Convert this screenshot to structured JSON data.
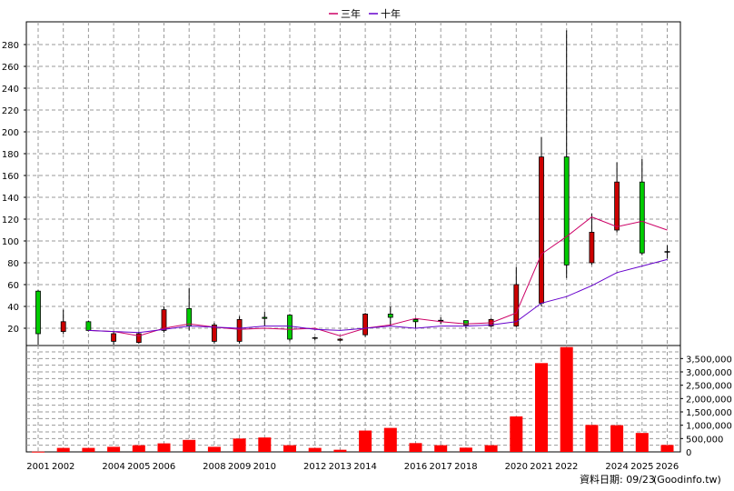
{
  "chart_data": {
    "type": "candlestick+line+bar",
    "legend": [
      {
        "name": "三年",
        "color": "#cc0066"
      },
      {
        "name": "十年",
        "color": "#6600cc"
      }
    ],
    "x_labels": [
      "2001",
      "2002",
      "2004",
      "2005",
      "2006",
      "2008",
      "2009",
      "2010",
      "2012",
      "2013",
      "2014",
      "2016",
      "2017",
      "2018",
      "2020",
      "2021",
      "2022",
      "2024",
      "2025",
      "2026"
    ],
    "price_axis": {
      "ticks": [
        20,
        40,
        60,
        80,
        100,
        120,
        140,
        160,
        180,
        200,
        220,
        240,
        260,
        280
      ],
      "range": [
        0,
        300
      ],
      "grid": true
    },
    "volume_axis": {
      "ticks": [
        500000,
        1000000,
        1500000,
        2000000,
        2500000,
        3000000,
        3500000
      ],
      "tick_labels": [
        "500,000",
        "1,000,000",
        "1,500,000",
        "2,000,000",
        "2,500,000",
        "3,000,000",
        "3,500,000"
      ],
      "range": [
        0,
        3900000
      ],
      "grid": true
    },
    "candles": [
      {
        "year": 2001,
        "open": 15,
        "close": 54,
        "high": 55,
        "low": 5
      },
      {
        "year": 2002,
        "open": 26,
        "close": 17,
        "high": 37,
        "low": 15
      },
      {
        "year": 2003,
        "open": 18,
        "close": 26,
        "high": 27,
        "low": 17
      },
      {
        "year": 2004,
        "open": 15,
        "close": 8,
        "high": 17,
        "low": 5
      },
      {
        "year": 2005,
        "open": 15,
        "close": 7,
        "high": 17,
        "low": 6
      },
      {
        "year": 2006,
        "open": 37,
        "close": 18,
        "high": 40,
        "low": 16
      },
      {
        "year": 2007,
        "open": 22,
        "close": 38,
        "high": 57,
        "low": 18
      },
      {
        "year": 2008,
        "open": 23,
        "close": 8,
        "high": 25,
        "low": 6
      },
      {
        "year": 2009,
        "open": 28,
        "close": 8,
        "high": 31,
        "low": 6
      },
      {
        "year": 2010,
        "open": 29,
        "close": 30,
        "high": 35,
        "low": 22
      },
      {
        "year": 2011,
        "open": 10,
        "close": 32,
        "high": 33,
        "low": 8
      },
      {
        "year": 2012,
        "open": 11,
        "close": 11,
        "high": 12,
        "low": 9
      },
      {
        "year": 2013,
        "open": 10,
        "close": 9,
        "high": 11,
        "low": 8
      },
      {
        "year": 2014,
        "open": 33,
        "close": 14,
        "high": 34,
        "low": 12
      },
      {
        "year": 2015,
        "open": 30,
        "close": 33,
        "high": 40,
        "low": 22
      },
      {
        "year": 2016,
        "open": 26,
        "close": 28,
        "high": 29,
        "low": 20
      },
      {
        "year": 2017,
        "open": 27,
        "close": 27,
        "high": 30,
        "low": 24
      },
      {
        "year": 2018,
        "open": 23,
        "close": 27,
        "high": 27,
        "low": 20
      },
      {
        "year": 2019,
        "open": 28,
        "close": 22,
        "high": 29,
        "low": 21
      },
      {
        "year": 2020,
        "open": 60,
        "close": 22,
        "high": 76,
        "low": 21
      },
      {
        "year": 2021,
        "open": 177,
        "close": 43,
        "high": 195,
        "low": 40
      },
      {
        "year": 2022,
        "open": 78,
        "close": 177,
        "high": 293,
        "low": 66
      },
      {
        "year": 2023,
        "open": 108,
        "close": 80,
        "high": 125,
        "low": 78
      },
      {
        "year": 2024,
        "open": 154,
        "close": 110,
        "high": 172,
        "low": 108
      },
      {
        "year": 2025,
        "open": 89,
        "close": 154,
        "high": 175,
        "low": 87
      },
      {
        "year": 2026,
        "open": 90,
        "close": 90,
        "high": 96,
        "low": 84
      }
    ],
    "series": [
      {
        "name": "三年",
        "x": [
          2003,
          2004,
          2005,
          2006,
          2007,
          2008,
          2009,
          2010,
          2011,
          2012,
          2013,
          2014,
          2015,
          2016,
          2017,
          2018,
          2019,
          2020,
          2021,
          2022,
          2023,
          2024,
          2025,
          2026
        ],
        "values": [
          18,
          17,
          13,
          20,
          24,
          21,
          19,
          20,
          19,
          20,
          13,
          20,
          23,
          29,
          26,
          24,
          25,
          34,
          88,
          104,
          122,
          113,
          118,
          110
        ]
      },
      {
        "name": "十年",
        "x": [
          2003,
          2004,
          2005,
          2006,
          2007,
          2008,
          2009,
          2010,
          2011,
          2012,
          2013,
          2014,
          2015,
          2016,
          2017,
          2018,
          2019,
          2020,
          2021,
          2022,
          2023,
          2024,
          2025,
          2026
        ],
        "values": [
          18,
          17,
          16,
          19,
          22,
          21,
          20,
          22,
          22,
          19,
          18,
          20,
          22,
          20,
          22,
          22,
          23,
          26,
          43,
          49,
          59,
          71,
          77,
          83
        ]
      }
    ],
    "volume": {
      "x": [
        2001,
        2002,
        2003,
        2004,
        2005,
        2006,
        2007,
        2008,
        2009,
        2010,
        2011,
        2012,
        2013,
        2014,
        2015,
        2016,
        2017,
        2018,
        2019,
        2020,
        2021,
        2022,
        2023,
        2024,
        2025,
        2026
      ],
      "values": [
        10000,
        150000,
        150000,
        190000,
        250000,
        320000,
        450000,
        190000,
        500000,
        540000,
        250000,
        150000,
        80000,
        800000,
        900000,
        330000,
        250000,
        160000,
        250000,
        1330000,
        3330000,
        3930000,
        1010000,
        1000000,
        710000,
        260000
      ]
    }
  },
  "footer": {
    "date_text": "資料日期: 09/23",
    "source_text": "(Goodinfo.tw)"
  }
}
